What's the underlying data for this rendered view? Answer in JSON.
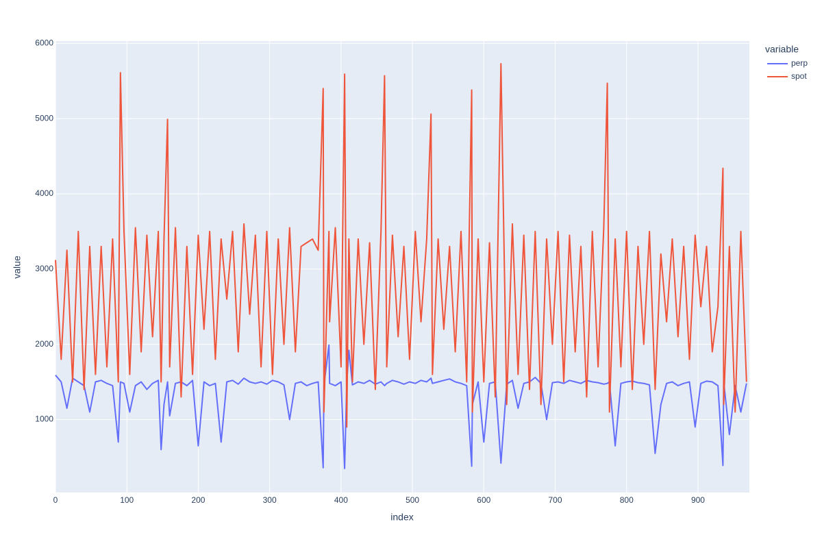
{
  "chart_data": {
    "type": "line",
    "xlabel": "index",
    "ylabel": "value",
    "legend_title": "variable",
    "legend": "right",
    "grid": true,
    "xlim": [
      0,
      972
    ],
    "xticks": [
      0,
      100,
      200,
      300,
      400,
      500,
      600,
      700,
      800,
      900
    ],
    "ylim": [
      30,
      6030
    ],
    "yticks": [
      1000,
      2000,
      3000,
      4000,
      5000,
      6000
    ],
    "x": [
      0,
      8,
      16,
      24,
      32,
      40,
      48,
      56,
      64,
      72,
      80,
      88,
      91,
      96,
      104,
      112,
      120,
      128,
      136,
      144,
      148,
      152,
      157,
      160,
      168,
      176,
      184,
      192,
      200,
      208,
      216,
      224,
      232,
      240,
      248,
      256,
      264,
      272,
      280,
      288,
      296,
      304,
      312,
      320,
      328,
      336,
      344,
      352,
      360,
      368,
      375,
      376,
      383,
      384,
      392,
      400,
      405,
      408,
      411,
      416,
      424,
      432,
      440,
      448,
      456,
      461,
      464,
      472,
      480,
      488,
      496,
      504,
      512,
      520,
      526,
      528,
      536,
      544,
      552,
      560,
      568,
      576,
      583,
      584,
      592,
      600,
      608,
      616,
      624,
      632,
      640,
      648,
      656,
      664,
      672,
      680,
      688,
      696,
      704,
      712,
      720,
      728,
      736,
      744,
      752,
      760,
      768,
      773,
      776,
      784,
      792,
      800,
      808,
      816,
      824,
      832,
      840,
      848,
      856,
      864,
      872,
      880,
      888,
      896,
      904,
      912,
      920,
      928,
      935,
      936,
      944,
      952,
      960,
      968
    ],
    "series": [
      {
        "name": "perp",
        "color": "#636efa",
        "values": [
          1590,
          1500,
          1150,
          1550,
          1500,
          1450,
          1100,
          1500,
          1520,
          1480,
          1450,
          700,
          1500,
          1480,
          1100,
          1450,
          1500,
          1400,
          1480,
          1520,
          600,
          1200,
          1500,
          1050,
          1480,
          1500,
          1450,
          1520,
          650,
          1500,
          1450,
          1480,
          700,
          1500,
          1520,
          1470,
          1550,
          1500,
          1480,
          1500,
          1470,
          1520,
          1500,
          1460,
          1000,
          1480,
          1500,
          1450,
          1480,
          1500,
          360,
          1450,
          1990,
          1480,
          1450,
          1500,
          350,
          1480,
          1920,
          1460,
          1500,
          1480,
          1520,
          1470,
          1500,
          1450,
          1480,
          1520,
          1500,
          1470,
          1500,
          1480,
          1520,
          1500,
          1550,
          1480,
          1500,
          1520,
          1540,
          1500,
          1480,
          1450,
          380,
          1200,
          1500,
          700,
          1480,
          1500,
          420,
          1470,
          1520,
          1150,
          1480,
          1500,
          1560,
          1480,
          1000,
          1490,
          1500,
          1480,
          1520,
          1500,
          1480,
          1520,
          1500,
          1490,
          1470,
          1480,
          1500,
          650,
          1480,
          1500,
          1510,
          1490,
          1480,
          1460,
          550,
          1200,
          1480,
          1500,
          1450,
          1480,
          1500,
          900,
          1480,
          1510,
          1500,
          1450,
          390,
          1500,
          800,
          1450,
          1100,
          1480
        ]
      },
      {
        "name": "spot",
        "color": "#EF553B",
        "values": [
          3120,
          1800,
          3250,
          1500,
          3500,
          1400,
          3300,
          1600,
          3300,
          1700,
          3400,
          1500,
          5610,
          3500,
          1600,
          3550,
          1900,
          3450,
          2100,
          3500,
          1500,
          3400,
          4990,
          1700,
          3550,
          1300,
          3300,
          1600,
          3450,
          2200,
          3500,
          1800,
          3400,
          2600,
          3500,
          1900,
          3600,
          2400,
          3450,
          1700,
          3500,
          1600,
          3400,
          2000,
          3550,
          1900,
          3300,
          3350,
          3400,
          3250,
          5400,
          1100,
          3500,
          2300,
          3550,
          1700,
          5590,
          900,
          3400,
          1500,
          3400,
          2000,
          3350,
          1400,
          3500,
          5570,
          1700,
          3450,
          2100,
          3300,
          1800,
          3500,
          2300,
          3400,
          5060,
          1600,
          3400,
          2200,
          3300,
          1900,
          3500,
          1500,
          5380,
          1100,
          3400,
          1500,
          3350,
          1300,
          5730,
          1200,
          3600,
          1600,
          3450,
          1400,
          3500,
          1200,
          3400,
          2000,
          3500,
          1500,
          3450,
          1900,
          3300,
          1300,
          3500,
          1700,
          3550,
          5470,
          1100,
          3400,
          1700,
          3500,
          1400,
          3300,
          2000,
          3500,
          1400,
          3200,
          2300,
          3400,
          2100,
          3300,
          1800,
          3450,
          2500,
          3300,
          1900,
          2500,
          4340,
          1200,
          3300,
          1100,
          3500,
          1500
        ]
      }
    ]
  }
}
